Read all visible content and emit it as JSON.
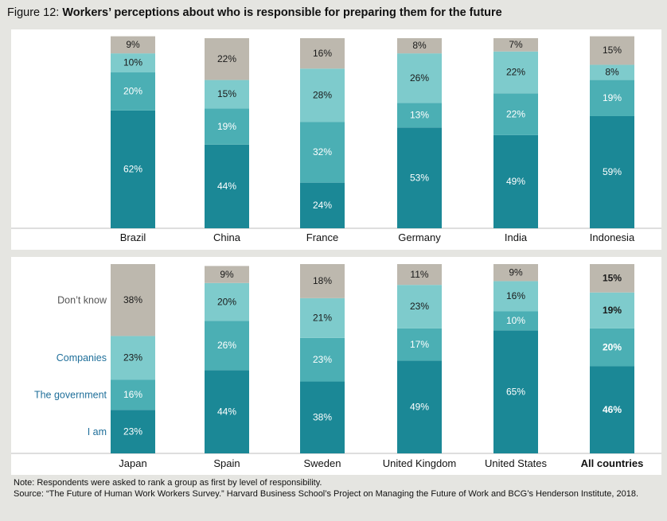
{
  "figure": {
    "label": "Figure 12:",
    "title": "Workers’ perceptions about who is responsible for preparing them for the future"
  },
  "note": {
    "line1": "Note: Respondents were asked to rank a group as first by level of responsibility.",
    "line2": "Source: “The Future of Human Work Workers Survey.” Harvard Business School’s Project on Managing the Future of Work and BCG’s Henderson Institute, 2018."
  },
  "colors": {
    "i_am": "#1b8896",
    "the_government": "#4bafb4",
    "companies": "#7ecbcc",
    "dont_know": "#bdb8ae",
    "legend_text": "#1f6f9a"
  },
  "chart_data": {
    "type": "bar",
    "stacked": true,
    "ylim": [
      0,
      100
    ],
    "legend": [
      "I am",
      "The government",
      "Companies",
      "Don’t know"
    ],
    "panels": [
      {
        "categories": [
          "Brazil",
          "China",
          "France",
          "Germany",
          "India",
          "Indonesia"
        ],
        "series": [
          {
            "name": "I am",
            "values": [
              62,
              44,
              24,
              53,
              49,
              59
            ]
          },
          {
            "name": "The government",
            "values": [
              20,
              19,
              32,
              13,
              22,
              19
            ]
          },
          {
            "name": "Companies",
            "values": [
              10,
              15,
              28,
              26,
              22,
              8
            ]
          },
          {
            "name": "Don’t know",
            "values": [
              9,
              22,
              16,
              8,
              7,
              15
            ]
          }
        ]
      },
      {
        "categories": [
          "Japan",
          "Spain",
          "Sweden",
          "United Kingdom",
          "United States",
          "All countries"
        ],
        "series": [
          {
            "name": "I am",
            "values": [
              23,
              44,
              38,
              49,
              65,
              46
            ]
          },
          {
            "name": "The government",
            "values": [
              16,
              26,
              23,
              17,
              10,
              20
            ]
          },
          {
            "name": "Companies",
            "values": [
              23,
              20,
              21,
              23,
              16,
              19
            ]
          },
          {
            "name": "Don’t know",
            "values": [
              38,
              9,
              18,
              11,
              9,
              15
            ]
          }
        ]
      }
    ],
    "emphasized_category": "All countries"
  }
}
